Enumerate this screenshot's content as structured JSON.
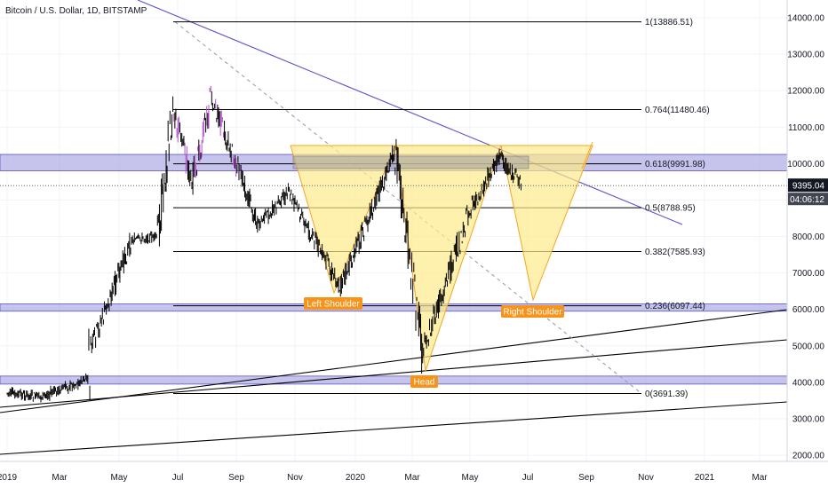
{
  "title": "Bitcoin / U.S. Dollar, 1D, BITSTAMP",
  "colors": {
    "background": "#ffffff",
    "grid": "#f0f3fa",
    "candle_body": "#000000",
    "wick": "#000000",
    "candle_highlight": "#b04fc8",
    "zone_fill": "#b3b0e6",
    "zone_stroke": "#5a55c7",
    "pattern_fill": "#fde98a",
    "pattern_stroke": "#f5a623",
    "label_bg": "#f7931a",
    "trendline_blue": "#5a55c7",
    "price_box": "#131722",
    "time_box": "#434651"
  },
  "current_price": {
    "price": "9395.04",
    "countdown": "04:06:12"
  },
  "pattern_labels": {
    "left_shoulder": "Left Shoulder",
    "head": "Head",
    "right_shoulder": "Right Shoulder"
  },
  "chart_data": {
    "type": "candlestick",
    "title": "Bitcoin / U.S. Dollar, 1D, BITSTAMP",
    "x_ticks": [
      "2019",
      "Mar",
      "May",
      "Jul",
      "Sep",
      "Nov",
      "2020",
      "Mar",
      "May",
      "Jul",
      "Sep",
      "Nov",
      "2021",
      "Mar"
    ],
    "y_ticks": [
      "2000.00",
      "3000.00",
      "4000.00",
      "5000.00",
      "6000.00",
      "7000.00",
      "8000.00",
      "9000.00",
      "10000.00",
      "11000.00",
      "12000.00",
      "13000.00",
      "14000.00"
    ],
    "ylim": [
      1700,
      14400
    ],
    "grid": true,
    "fibonacci": [
      {
        "label": "1(13886.51)",
        "value": 13886.51
      },
      {
        "label": "0.764(11480.46)",
        "value": 11480.46
      },
      {
        "label": "0.618(9991.98)",
        "value": 9991.98
      },
      {
        "label": "0.5(8788.95)",
        "value": 8788.95
      },
      {
        "label": "0.382(7585.93)",
        "value": 7585.93
      },
      {
        "label": "0.236(6097.44)",
        "value": 6097.44
      },
      {
        "label": "0(3691.39)",
        "value": 3691.39
      }
    ],
    "zones": [
      {
        "from": 9800,
        "to": 10250
      },
      {
        "from": 5950,
        "to": 6150
      },
      {
        "from": 3950,
        "to": 4170
      }
    ],
    "series": [
      {
        "x": [
          "2019-01-01",
          "2019-02-08",
          "2019-03-31",
          "2019-04-02",
          "2019-05-14",
          "2019-06-10",
          "2019-06-26",
          "2019-07-16",
          "2019-08-06",
          "2019-09-24",
          "2019-10-25",
          "2019-12-17",
          "2020-02-12",
          "2020-03-12",
          "2020-04-29",
          "2020-06-01",
          "2020-06-25"
        ],
        "close": [
          3700,
          3600,
          4100,
          4900,
          7900,
          8000,
          11500,
          9500,
          11800,
          8300,
          9200,
          6600,
          10350,
          4800,
          8600,
          10200,
          9395
        ]
      }
    ]
  }
}
